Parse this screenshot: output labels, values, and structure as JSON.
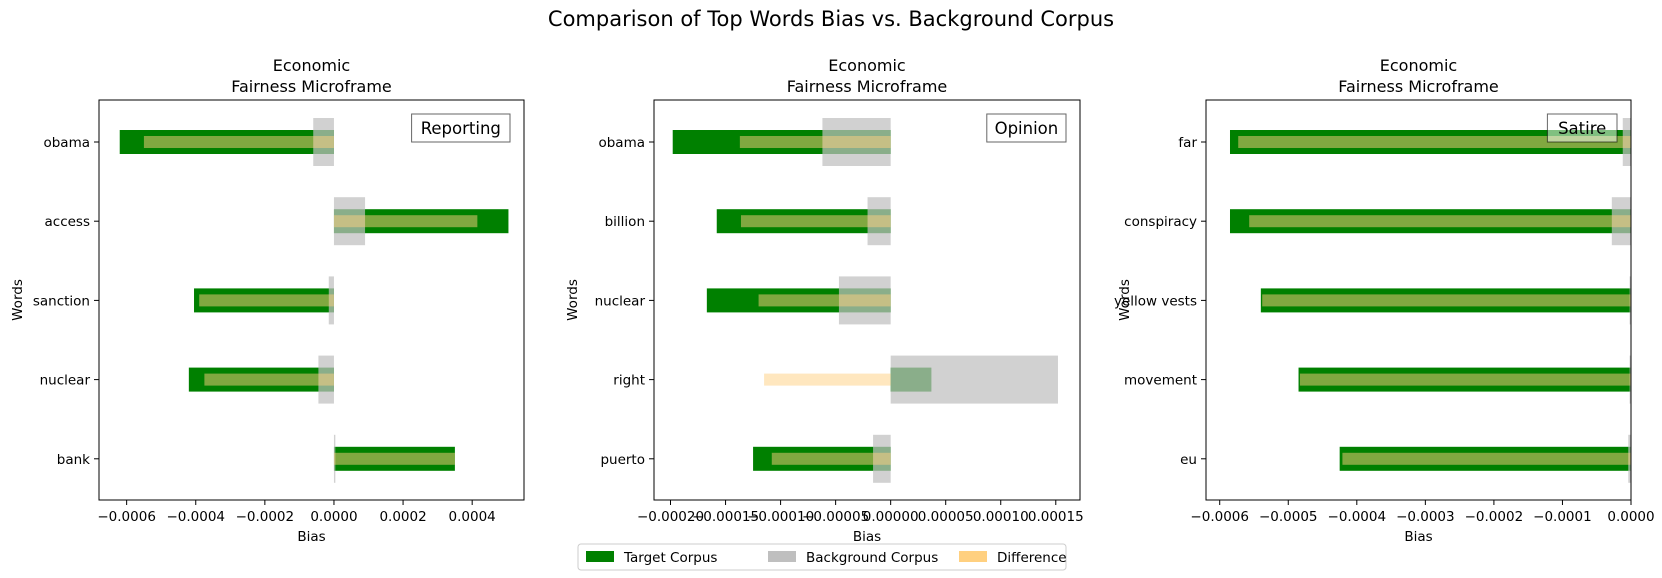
{
  "suptitle": "Comparison of Top Words Bias vs. Background Corpus",
  "legend": {
    "placement": "bottom-center",
    "entries": [
      {
        "label": "Target Corpus",
        "color": "#008000"
      },
      {
        "label": "Background Corpus",
        "color": "#bfbfbf"
      },
      {
        "label": "Difference",
        "color": "#ffd080"
      }
    ]
  },
  "chart_data": [
    {
      "type": "bar",
      "orientation": "horizontal",
      "title": "Economic\nFairness Microframe",
      "panel_label": "Reporting",
      "xlabel": "Bias",
      "ylabel": "Words",
      "xlim": [
        -0.00068,
        0.00055
      ],
      "xticks": [
        -0.0006,
        -0.0004,
        -0.0002,
        0.0,
        0.0002,
        0.0004
      ],
      "xtick_labels": [
        "−0.0006",
        "−0.0004",
        "−0.0002",
        "0.0000",
        "0.0002",
        "0.0004"
      ],
      "categories": [
        "obama",
        "access",
        "sanction",
        "nuclear",
        "bank"
      ],
      "series": [
        {
          "name": "Target Corpus",
          "color": "#008000",
          "values": [
            -0.00062,
            0.000505,
            -0.000405,
            -0.00042,
            0.00035
          ]
        },
        {
          "name": "Background Corpus",
          "color": "#bfbfbf",
          "values": [
            -6e-05,
            9e-05,
            -1.5e-05,
            -4.5e-05,
            4e-06
          ]
        },
        {
          "name": "Difference",
          "color": "#ffd080",
          "values": [
            -0.00055,
            0.000415,
            -0.00039,
            -0.000375,
            0.00035
          ]
        }
      ]
    },
    {
      "type": "bar",
      "orientation": "horizontal",
      "title": "Economic\nFairness Microframe",
      "panel_label": "Opinion",
      "xlabel": "Bias",
      "ylabel": "Words",
      "xlim": [
        -0.000215,
        0.000172
      ],
      "xticks": [
        -0.0002,
        -0.00015,
        -0.0001,
        -5e-05,
        0.0,
        5e-05,
        0.0001,
        0.00015
      ],
      "xtick_labels": [
        "−0.00020",
        "−0.00015",
        "−0.00010",
        "−0.00005",
        "0.00000",
        "0.00005",
        "0.00010",
        "0.00015"
      ],
      "categories": [
        "obama",
        "billion",
        "nuclear",
        "right",
        "puerto"
      ],
      "series": [
        {
          "name": "Target Corpus",
          "color": "#008000",
          "values": [
            -0.000198,
            -0.000158,
            -0.000167,
            3.7e-05,
            -0.000125
          ]
        },
        {
          "name": "Background Corpus",
          "color": "#bfbfbf",
          "values": [
            -6.2e-05,
            -2.1e-05,
            -4.7e-05,
            0.000152,
            -1.6e-05
          ]
        },
        {
          "name": "Difference",
          "color": "#ffd080",
          "values": [
            -0.000137,
            -0.000136,
            -0.00012,
            -0.000115,
            -0.000108
          ]
        }
      ]
    },
    {
      "type": "bar",
      "orientation": "horizontal",
      "title": "Economic\nFairness Microframe",
      "panel_label": "Satire",
      "xlabel": "Bias",
      "ylabel": "Words",
      "xlim": [
        -0.00062,
        0.0
      ],
      "xticks": [
        -0.0006,
        -0.0005,
        -0.0004,
        -0.0003,
        -0.0002,
        -0.0001,
        0.0
      ],
      "xtick_labels": [
        "−0.0006",
        "−0.0005",
        "−0.0004",
        "−0.0003",
        "−0.0002",
        "−0.0001",
        "0.0000"
      ],
      "categories": [
        "far",
        "conspiracy",
        "yellow vests",
        "movement",
        "eu"
      ],
      "series": [
        {
          "name": "Target Corpus",
          "color": "#008000",
          "values": [
            -0.000585,
            -0.000585,
            -0.00054,
            -0.000485,
            -0.000425
          ]
        },
        {
          "name": "Background Corpus",
          "color": "#bfbfbf",
          "values": [
            -1.2e-05,
            -2.8e-05,
            -2e-06,
            -2e-06,
            -4e-06
          ]
        },
        {
          "name": "Difference",
          "color": "#ffd080",
          "values": [
            -0.000573,
            -0.000557,
            -0.000538,
            -0.000483,
            -0.000421
          ]
        }
      ]
    }
  ]
}
